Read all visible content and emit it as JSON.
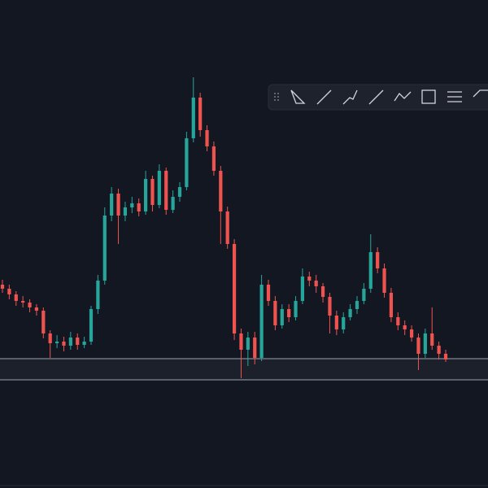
{
  "chart_data": {
    "type": "candlestick",
    "ylim": [
      0,
      600
    ],
    "up_color": "#26a69a",
    "down_color": "#ef5350",
    "levels": [
      159,
      133
    ],
    "open": [
      250,
      245,
      238,
      230,
      228,
      222,
      218,
      190,
      178,
      180,
      175,
      185,
      176,
      180,
      220,
      255,
      335,
      362,
      335,
      345,
      350,
      340,
      380,
      348,
      390,
      342,
      358,
      370,
      430,
      480,
      440,
      420,
      390,
      340,
      300,
      190,
      170,
      185,
      160,
      250,
      230,
      200,
      220,
      210,
      230,
      260,
      255,
      248,
      235,
      212,
      195,
      210,
      220,
      230,
      245,
      290,
      270,
      240,
      210,
      200,
      195,
      185,
      165,
      190,
      175,
      165
    ],
    "high": [
      256,
      250,
      242,
      236,
      232,
      226,
      222,
      194,
      188,
      186,
      192,
      190,
      186,
      224,
      262,
      345,
      370,
      368,
      352,
      358,
      356,
      390,
      384,
      398,
      394,
      366,
      376,
      438,
      505,
      486,
      446,
      426,
      396,
      346,
      306,
      196,
      192,
      192,
      262,
      256,
      236,
      226,
      226,
      236,
      270,
      266,
      262,
      252,
      240,
      218,
      216,
      226,
      236,
      252,
      312,
      296,
      276,
      246,
      216,
      206,
      200,
      190,
      196,
      222,
      180,
      170
    ],
    "low": [
      240,
      232,
      224,
      222,
      216,
      212,
      184,
      160,
      172,
      168,
      170,
      170,
      172,
      176,
      214,
      250,
      328,
      300,
      328,
      338,
      334,
      336,
      340,
      344,
      336,
      338,
      352,
      366,
      425,
      432,
      414,
      384,
      300,
      294,
      182,
      135,
      150,
      152,
      156,
      224,
      194,
      196,
      204,
      206,
      226,
      248,
      240,
      228,
      190,
      188,
      190,
      206,
      214,
      226,
      240,
      264,
      234,
      204,
      194,
      188,
      180,
      145,
      160,
      170,
      158,
      155
    ],
    "close": [
      245,
      238,
      230,
      228,
      222,
      218,
      190,
      178,
      180,
      175,
      185,
      176,
      180,
      220,
      255,
      335,
      362,
      335,
      345,
      350,
      340,
      380,
      348,
      390,
      342,
      358,
      370,
      430,
      480,
      440,
      420,
      390,
      340,
      300,
      190,
      170,
      185,
      160,
      250,
      230,
      200,
      220,
      210,
      230,
      260,
      255,
      248,
      235,
      212,
      195,
      210,
      220,
      230,
      245,
      290,
      270,
      240,
      210,
      200,
      195,
      185,
      165,
      190,
      175,
      165,
      158
    ]
  }
}
